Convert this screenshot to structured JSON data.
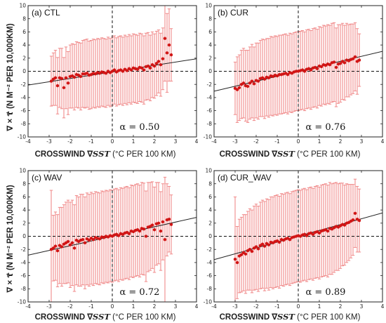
{
  "figure": {
    "ylabel": "∇ × τ⃗ (N M⁻² PER 10,000KM)",
    "xlabel_prefix": "CROSSWIND ∇",
    "xlabel_var": "SST",
    "xlabel_suffix": " (°C PER 100 KM)"
  },
  "chart_data": [
    {
      "type": "scatter",
      "title": "(a) CTL",
      "alpha_label": "α = 0.50",
      "xlim": [
        -4,
        4
      ],
      "ylim": [
        -10,
        10
      ],
      "xticks": [
        -4,
        -3,
        -2,
        -1,
        0,
        1,
        2,
        3,
        4
      ],
      "yticks": [
        -10,
        -8,
        -6,
        -4,
        -2,
        0,
        2,
        4,
        6,
        8,
        10
      ],
      "fit": {
        "slope": 0.5,
        "intercept": -0.1
      },
      "x": [
        -2.9,
        -2.8,
        -2.7,
        -2.6,
        -2.5,
        -2.4,
        -2.3,
        -2.2,
        -2.1,
        -2.0,
        -1.9,
        -1.8,
        -1.7,
        -1.6,
        -1.5,
        -1.4,
        -1.3,
        -1.2,
        -1.1,
        -1.0,
        -0.9,
        -0.8,
        -0.7,
        -0.6,
        -0.5,
        -0.4,
        -0.3,
        -0.2,
        -0.1,
        0.0,
        0.1,
        0.2,
        0.3,
        0.4,
        0.5,
        0.6,
        0.7,
        0.8,
        0.9,
        1.0,
        1.1,
        1.2,
        1.3,
        1.4,
        1.5,
        1.6,
        1.7,
        1.8,
        1.9,
        2.0,
        2.1,
        2.2,
        2.3,
        2.4,
        2.5,
        2.6,
        2.7,
        2.8
      ],
      "y": [
        -1.5,
        -1.2,
        -1.0,
        -2.2,
        -1.0,
        -1.1,
        -2.5,
        -1.0,
        -1.8,
        -0.8,
        -0.7,
        -0.9,
        -0.5,
        -0.6,
        -0.8,
        -0.4,
        -0.4,
        -0.3,
        -0.6,
        -0.5,
        -0.3,
        -0.4,
        -0.2,
        -0.3,
        -0.1,
        -0.2,
        -0.3,
        0.0,
        -0.2,
        0.0,
        0.2,
        -0.1,
        0.1,
        0.2,
        0.0,
        0.3,
        0.1,
        0.4,
        0.2,
        0.5,
        0.4,
        0.3,
        0.6,
        0.5,
        0.2,
        0.7,
        0.8,
        0.5,
        1.0,
        0.8,
        1.2,
        1.5,
        1.0,
        1.9,
        5.0,
        2.8,
        4.0,
        2.5
      ],
      "err": [
        3.8,
        4.0,
        4.2,
        4.3,
        4.5,
        4.6,
        4.6,
        4.7,
        4.8,
        4.8,
        4.9,
        5.0,
        5.0,
        5.0,
        5.1,
        5.1,
        5.2,
        5.2,
        5.2,
        5.2,
        5.2,
        5.2,
        5.2,
        5.2,
        5.2,
        5.2,
        5.2,
        5.2,
        5.2,
        5.2,
        5.2,
        5.2,
        5.2,
        5.2,
        5.2,
        5.2,
        5.2,
        5.2,
        5.2,
        5.2,
        5.2,
        5.2,
        5.2,
        5.2,
        5.2,
        5.1,
        5.1,
        5.0,
        5.0,
        4.9,
        4.9,
        4.8,
        4.8,
        4.7,
        6.5,
        6.0,
        5.5,
        4.0
      ]
    },
    {
      "type": "scatter",
      "title": "(b) CUR",
      "alpha_label": "α = 0.76",
      "xlim": [
        -4,
        4
      ],
      "ylim": [
        -10,
        10
      ],
      "xticks": [
        -4,
        -3,
        -2,
        -1,
        0,
        1,
        2,
        3,
        4
      ],
      "yticks": [
        -10,
        -8,
        -6,
        -4,
        -2,
        0,
        2,
        4,
        6,
        8,
        10
      ],
      "fit": {
        "slope": 0.76,
        "intercept": 0.0
      },
      "x": [
        -3.0,
        -2.9,
        -2.8,
        -2.7,
        -2.6,
        -2.5,
        -2.4,
        -2.3,
        -2.2,
        -2.1,
        -2.0,
        -1.9,
        -1.8,
        -1.7,
        -1.6,
        -1.5,
        -1.4,
        -1.3,
        -1.2,
        -1.1,
        -1.0,
        -0.9,
        -0.8,
        -0.7,
        -0.6,
        -0.5,
        -0.4,
        -0.3,
        -0.2,
        -0.1,
        0.0,
        0.1,
        0.2,
        0.3,
        0.4,
        0.5,
        0.6,
        0.7,
        0.8,
        0.9,
        1.0,
        1.1,
        1.2,
        1.3,
        1.4,
        1.5,
        1.6,
        1.7,
        1.8,
        1.9,
        2.0,
        2.1,
        2.2,
        2.3,
        2.4,
        2.5,
        2.6,
        2.7,
        2.8,
        2.9
      ],
      "y": [
        -2.6,
        -2.8,
        -2.5,
        -2.0,
        -1.8,
        -2.2,
        -2.3,
        -1.8,
        -1.5,
        -1.9,
        -1.4,
        -1.5,
        -1.1,
        -1.0,
        -1.2,
        -0.9,
        -1.0,
        -0.7,
        -0.8,
        -0.6,
        -0.7,
        -0.5,
        -0.5,
        -0.4,
        -0.3,
        -0.5,
        -0.2,
        -0.3,
        -0.1,
        0.0,
        0.0,
        0.1,
        0.2,
        0.0,
        0.3,
        0.4,
        0.2,
        0.5,
        0.6,
        0.4,
        0.8,
        0.7,
        1.0,
        0.9,
        1.1,
        1.0,
        1.3,
        1.4,
        0.6,
        1.1,
        1.2,
        1.5,
        1.3,
        1.7,
        1.6,
        1.8,
        1.9,
        2.2,
        1.5,
        1.7
      ],
      "err": [
        4.0,
        5.0,
        5.0,
        5.2,
        5.3,
        5.4,
        5.5,
        5.5,
        5.6,
        5.6,
        5.7,
        5.8,
        5.8,
        5.9,
        6.0,
        5.9,
        6.0,
        6.0,
        6.0,
        6.0,
        6.0,
        6.0,
        6.0,
        6.0,
        6.0,
        6.0,
        6.0,
        6.0,
        6.0,
        6.0,
        6.0,
        6.0,
        6.0,
        6.0,
        6.0,
        6.0,
        6.0,
        6.0,
        6.0,
        6.0,
        6.0,
        6.0,
        6.0,
        6.0,
        6.0,
        6.0,
        6.0,
        6.0,
        6.0,
        6.0,
        5.9,
        5.8,
        5.7,
        5.6,
        5.5,
        5.4,
        5.3,
        5.2,
        5.0,
        4.0
      ]
    },
    {
      "type": "scatter",
      "title": "(c) WAV",
      "alpha_label": "α = 0.72",
      "xlim": [
        -4,
        4
      ],
      "ylim": [
        -10,
        10
      ],
      "xticks": [
        -4,
        -3,
        -2,
        -1,
        0,
        1,
        2,
        3,
        4
      ],
      "yticks": [
        -10,
        -8,
        -6,
        -4,
        -2,
        0,
        2,
        4,
        6,
        8,
        10
      ],
      "fit": {
        "slope": 0.72,
        "intercept": 0.0
      },
      "x": [
        -2.9,
        -2.8,
        -2.7,
        -2.6,
        -2.5,
        -2.4,
        -2.3,
        -2.2,
        -2.1,
        -2.0,
        -1.9,
        -1.8,
        -1.7,
        -1.6,
        -1.5,
        -1.4,
        -1.3,
        -1.2,
        -1.1,
        -1.0,
        -0.9,
        -0.8,
        -0.7,
        -0.6,
        -0.5,
        -0.4,
        -0.3,
        -0.2,
        -0.1,
        0.0,
        0.1,
        0.2,
        0.3,
        0.4,
        0.5,
        0.6,
        0.7,
        0.8,
        0.9,
        1.0,
        1.1,
        1.2,
        1.3,
        1.4,
        1.5,
        1.6,
        1.7,
        1.8,
        1.9,
        2.0,
        2.1,
        2.2,
        2.3,
        2.4,
        2.5,
        2.6,
        2.7,
        2.8
      ],
      "y": [
        -2.0,
        -1.8,
        -1.5,
        -2.2,
        -1.4,
        -1.6,
        -1.2,
        -1.0,
        -0.8,
        -1.3,
        -1.0,
        -1.8,
        -0.6,
        -0.8,
        -0.6,
        -0.5,
        -1.0,
        -0.4,
        -0.6,
        -0.3,
        -0.5,
        -0.2,
        -0.3,
        -0.4,
        -0.1,
        -0.2,
        0.0,
        -0.1,
        0.1,
        0.0,
        0.2,
        0.3,
        0.1,
        0.4,
        0.3,
        0.5,
        0.6,
        0.4,
        0.8,
        0.7,
        0.9,
        1.0,
        0.8,
        1.2,
        1.1,
        0.0,
        1.4,
        1.5,
        1.7,
        1.0,
        1.9,
        2.0,
        0.8,
        2.2,
        -0.5,
        2.5,
        2.6,
        1.8
      ],
      "err": [
        9.0,
        5.0,
        5.2,
        5.5,
        5.8,
        6.0,
        6.0,
        6.2,
        6.3,
        6.5,
        6.5,
        6.6,
        6.8,
        6.8,
        7.0,
        6.9,
        7.0,
        7.0,
        7.0,
        7.0,
        7.0,
        7.0,
        7.0,
        7.0,
        7.0,
        7.0,
        7.0,
        7.0,
        7.0,
        7.0,
        7.0,
        7.0,
        7.0,
        7.0,
        7.0,
        7.0,
        7.0,
        7.0,
        7.0,
        7.0,
        7.0,
        7.0,
        7.0,
        7.0,
        7.0,
        6.9,
        6.8,
        6.7,
        6.6,
        6.5,
        6.3,
        6.2,
        6.0,
        5.8,
        9.5,
        5.5,
        5.0,
        4.5
      ]
    },
    {
      "type": "scatter",
      "title": "(d) CUR_WAV",
      "alpha_label": "α = 0.89",
      "xlim": [
        -4,
        4
      ],
      "ylim": [
        -10,
        10
      ],
      "xticks": [
        -4,
        -3,
        -2,
        -1,
        0,
        1,
        2,
        3,
        4
      ],
      "yticks": [
        -10,
        -8,
        -6,
        -4,
        -2,
        0,
        2,
        4,
        6,
        8,
        10
      ],
      "fit": {
        "slope": 0.89,
        "intercept": 0.0
      },
      "x": [
        -3.0,
        -2.9,
        -2.8,
        -2.7,
        -2.6,
        -2.5,
        -2.4,
        -2.3,
        -2.2,
        -2.1,
        -2.0,
        -1.9,
        -1.8,
        -1.7,
        -1.6,
        -1.5,
        -1.4,
        -1.3,
        -1.2,
        -1.1,
        -1.0,
        -0.9,
        -0.8,
        -0.7,
        -0.6,
        -0.5,
        -0.4,
        -0.3,
        -0.2,
        -0.1,
        0.0,
        0.1,
        0.2,
        0.3,
        0.4,
        0.5,
        0.6,
        0.7,
        0.8,
        0.9,
        1.0,
        1.1,
        1.2,
        1.3,
        1.4,
        1.5,
        1.6,
        1.7,
        1.8,
        1.9,
        2.0,
        2.1,
        2.2,
        2.3,
        2.4,
        2.5,
        2.6,
        2.7,
        2.8,
        2.9
      ],
      "y": [
        -3.5,
        -4.0,
        -3.0,
        -2.8,
        -2.5,
        -2.7,
        -2.2,
        -2.0,
        -2.3,
        -1.8,
        -1.6,
        -1.9,
        -1.4,
        -1.2,
        -1.5,
        -1.1,
        -1.3,
        -0.9,
        -1.0,
        -0.8,
        -0.7,
        -0.9,
        -0.5,
        -0.6,
        -0.4,
        -0.3,
        -0.5,
        -0.2,
        -0.1,
        0.0,
        0.1,
        0.0,
        0.2,
        0.3,
        0.1,
        0.4,
        0.5,
        0.3,
        0.6,
        0.7,
        0.5,
        0.8,
        0.9,
        1.0,
        0.8,
        1.2,
        1.1,
        1.3,
        1.5,
        1.4,
        1.6,
        1.8,
        1.7,
        2.0,
        2.1,
        2.3,
        2.5,
        3.5,
        2.6,
        2.4
      ],
      "err": [
        9.5,
        5.5,
        5.6,
        5.7,
        5.8,
        6.0,
        6.0,
        6.2,
        6.3,
        6.4,
        6.5,
        6.5,
        6.6,
        6.7,
        6.8,
        6.8,
        6.9,
        6.9,
        7.0,
        7.0,
        7.0,
        7.0,
        7.0,
        7.0,
        7.0,
        7.0,
        7.0,
        7.0,
        7.0,
        7.0,
        7.0,
        7.0,
        7.0,
        7.0,
        7.0,
        7.0,
        7.0,
        7.0,
        7.0,
        7.0,
        7.0,
        7.0,
        7.0,
        7.0,
        7.0,
        7.0,
        6.9,
        6.8,
        6.7,
        6.6,
        6.5,
        6.3,
        6.1,
        6.0,
        5.8,
        5.6,
        5.4,
        5.2,
        5.0,
        4.8
      ]
    }
  ]
}
